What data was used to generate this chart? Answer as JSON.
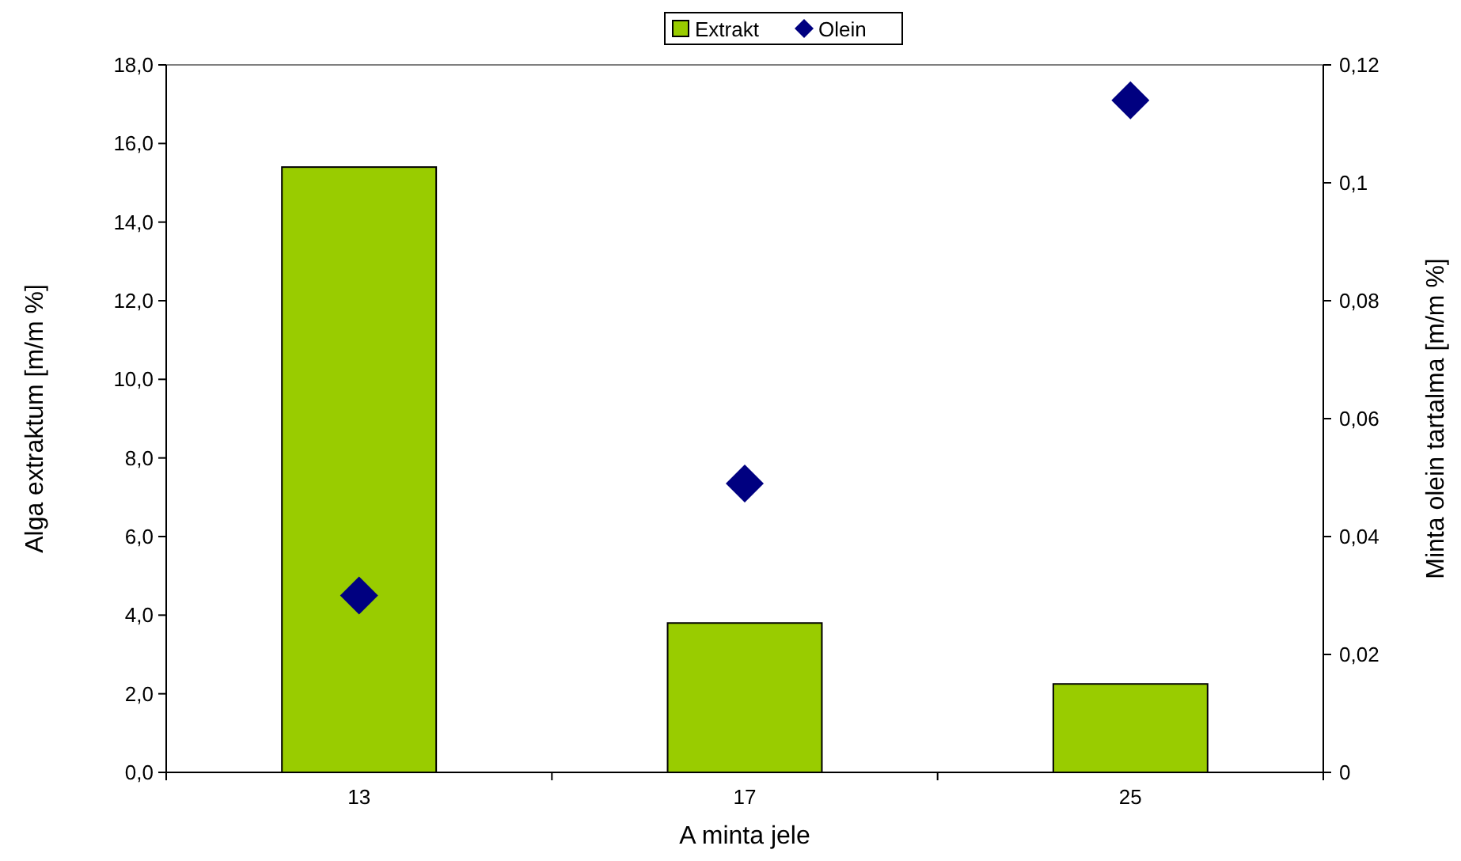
{
  "chart_data": {
    "type": "bar",
    "xlabel": "A minta jele",
    "ylabel": "Alga extraktum [m/m %]",
    "y2label": "Minta olein tartalma [m/m %]",
    "categories": [
      "13",
      "17",
      "25"
    ],
    "series": [
      {
        "name": "Extrakt",
        "color": "#99cc00",
        "values": [
          15.4,
          3.8,
          2.25
        ]
      },
      {
        "name": "Olein",
        "type": "scatter",
        "axis": "y2",
        "color": "#000080",
        "marker": "diamond",
        "x": [
          "13",
          "17",
          "25"
        ],
        "values": [
          0.03,
          0.049,
          0.114
        ]
      }
    ],
    "ylim": [
      0,
      18
    ],
    "yticks": [
      {
        "value": 0,
        "label": "0,0"
      },
      {
        "value": 2,
        "label": "2,0"
      },
      {
        "value": 4,
        "label": "4,0"
      },
      {
        "value": 6,
        "label": "6,0"
      },
      {
        "value": 8,
        "label": "8,0"
      },
      {
        "value": 10,
        "label": "10,0"
      },
      {
        "value": 12,
        "label": "12,0"
      },
      {
        "value": 14,
        "label": "14,0"
      },
      {
        "value": 16,
        "label": "16,0"
      },
      {
        "value": 18,
        "label": "18,0"
      }
    ],
    "y2lim": [
      0,
      0.12
    ],
    "y2ticks": [
      0,
      {
        "value": 0.02,
        "label": "0,02"
      },
      {
        "value": 0.04,
        "label": "0,04"
      },
      {
        "value": 0.06,
        "label": "0,06"
      },
      {
        "value": 0.08,
        "label": "0,08"
      },
      {
        "value": 0.1,
        "label": "0,1"
      },
      {
        "value": 0.12,
        "label": "0,12"
      }
    ],
    "legend": "top",
    "grid": false
  }
}
